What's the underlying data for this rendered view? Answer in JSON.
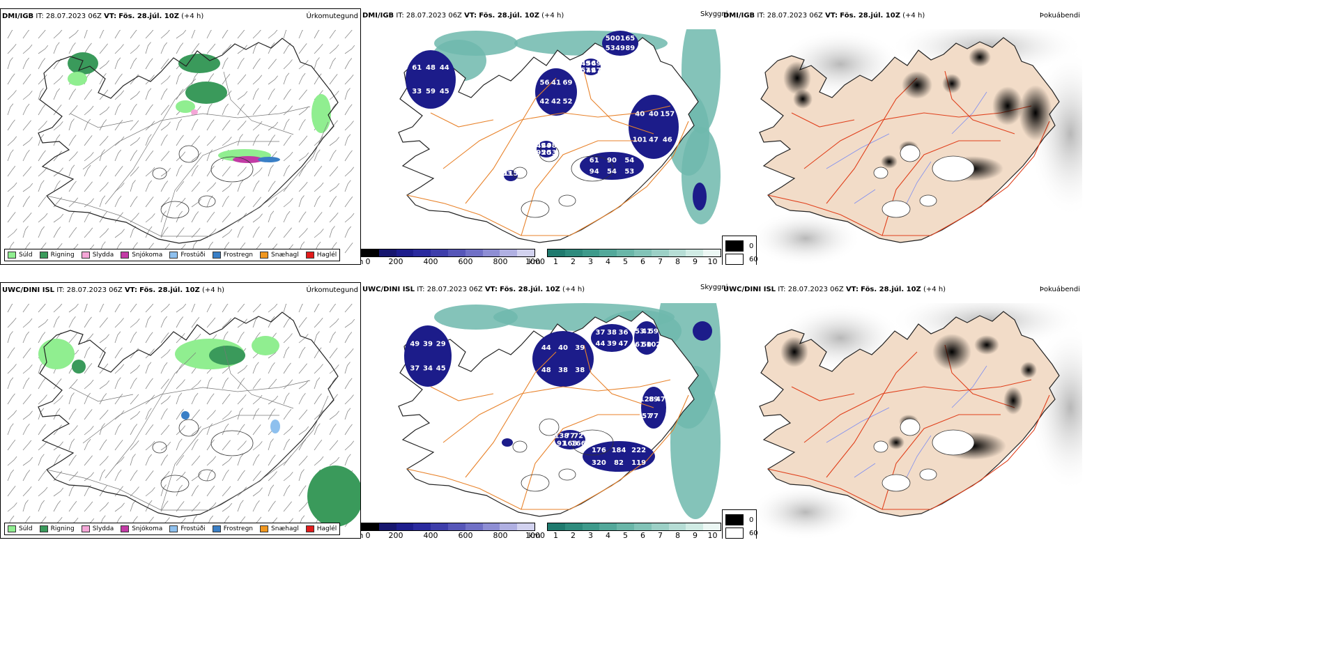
{
  "rows": [
    {
      "id": "top",
      "precip": {
        "model": "DMI/IGB",
        "it_label": "IT:",
        "it": "28.07.2023 06Z",
        "vt_label": "VT:",
        "vt": "Fös. 28.júl. 10Z",
        "lead": "(+4 h)",
        "title_right": "Úrkomutegund"
      },
      "visibility": {
        "model": "DMI/IGB",
        "it_label": "IT:",
        "it": "28.07.2023 06Z",
        "vt_label": "VT:",
        "vt": "Fös. 28.júl. 10Z",
        "lead": "(+4 h)",
        "title_right": "Skyggni",
        "labels": [
          "61",
          "48",
          "44",
          "33",
          "59",
          "45",
          "56",
          "41",
          "69",
          "42",
          "42",
          "52",
          "49",
          "56",
          "49",
          "57",
          "49",
          "47",
          "50",
          "01",
          "65",
          "53",
          "49",
          "89",
          "40",
          "40",
          "157",
          "101",
          "47",
          "46",
          "61",
          "90",
          "54",
          "94",
          "54",
          "53",
          "49",
          "44",
          "98",
          "95",
          "20",
          "53",
          "53",
          "115"
        ]
      },
      "fog": {
        "model": "DMI/IGB",
        "it_label": "IT:",
        "it": "28.07.2023 06Z",
        "vt_label": "VT:",
        "vt": "Fös. 28.júl. 10Z",
        "lead": "(+4 h)",
        "title_right": "Þokuábendi"
      }
    },
    {
      "id": "bottom",
      "precip": {
        "model": "UWC/DINI ISL",
        "it_label": "IT:",
        "it": "28.07.2023 06Z",
        "vt_label": "VT:",
        "vt": "Fös. 28.júl. 10Z",
        "lead": "(+4 h)",
        "title_right": "Úrkomutegund"
      },
      "visibility": {
        "model": "UWC/DINI ISL",
        "it_label": "IT:",
        "it": "28.07.2023 06Z",
        "vt_label": "VT:",
        "vt": "Fös. 28.júl. 10Z",
        "lead": "(+4 h)",
        "title_right": "Skyggni",
        "labels": [
          "49",
          "39",
          "29",
          "37",
          "34",
          "45",
          "44",
          "40",
          "39",
          "48",
          "38",
          "38",
          "37",
          "38",
          "36",
          "44",
          "39",
          "47",
          "53",
          "41",
          "59",
          "61",
          "50",
          "102",
          "138",
          "77",
          "72",
          "91",
          "168",
          "166",
          "176",
          "184",
          "222",
          "320",
          "82",
          "119",
          "128",
          "89",
          "47",
          "57",
          "77"
        ]
      },
      "fog": {
        "model": "UWC/DINI ISL",
        "it_label": "IT:",
        "it": "28.07.2023 06Z",
        "vt_label": "VT:",
        "vt": "Fös. 28.júl. 10Z",
        "lead": "(+4 h)",
        "title_right": "Þokuábendi"
      }
    }
  ],
  "precip_legend": [
    {
      "label": "Súld",
      "color": "#90ee90"
    },
    {
      "label": "Rigning",
      "color": "#3a9a5b"
    },
    {
      "label": "Slydda",
      "color": "#f4a6d7"
    },
    {
      "label": "Snjókoma",
      "color": "#c23ba5"
    },
    {
      "label": "Frostúði",
      "color": "#8ec0ee"
    },
    {
      "label": "Frostregn",
      "color": "#3a7fc6"
    },
    {
      "label": "Snæhagl",
      "color": "#f0961e"
    },
    {
      "label": "Haglél",
      "color": "#e21b1b"
    }
  ],
  "height_scale": {
    "unit": "m",
    "ticks": [
      "0",
      "200",
      "400",
      "600",
      "800",
      "1000"
    ],
    "colors": [
      "#000000",
      "#16166e",
      "#1d1d8c",
      "#2a2a9e",
      "#3e3eaa",
      "#5656b8",
      "#7070c6",
      "#8e8ed4",
      "#b0b0e2",
      "#d2d2ef"
    ]
  },
  "distance_scale": {
    "unit": "km",
    "ticks": [
      "1",
      "2",
      "3",
      "4",
      "5",
      "6",
      "7",
      "8",
      "9",
      "10"
    ],
    "colors": [
      "#1f7a6e",
      "#2e8b7d",
      "#3e9a8b",
      "#53a89a",
      "#6ab6a8",
      "#82c3b7",
      "#9cd0c6",
      "#b6ddd5",
      "#d0ebe4",
      "#ecf7f4"
    ]
  },
  "fog_legend": [
    {
      "label": "0",
      "color": "#000000"
    },
    {
      "label": "60",
      "color": "#ffffff"
    }
  ],
  "colors": {
    "precip_land_outline": "#222222",
    "visibility_land": "#ffffff",
    "road": "#e8822a",
    "fog_land": "#f2dcc8",
    "fog_road": "#e0401c",
    "river": "#7f8ef0"
  }
}
